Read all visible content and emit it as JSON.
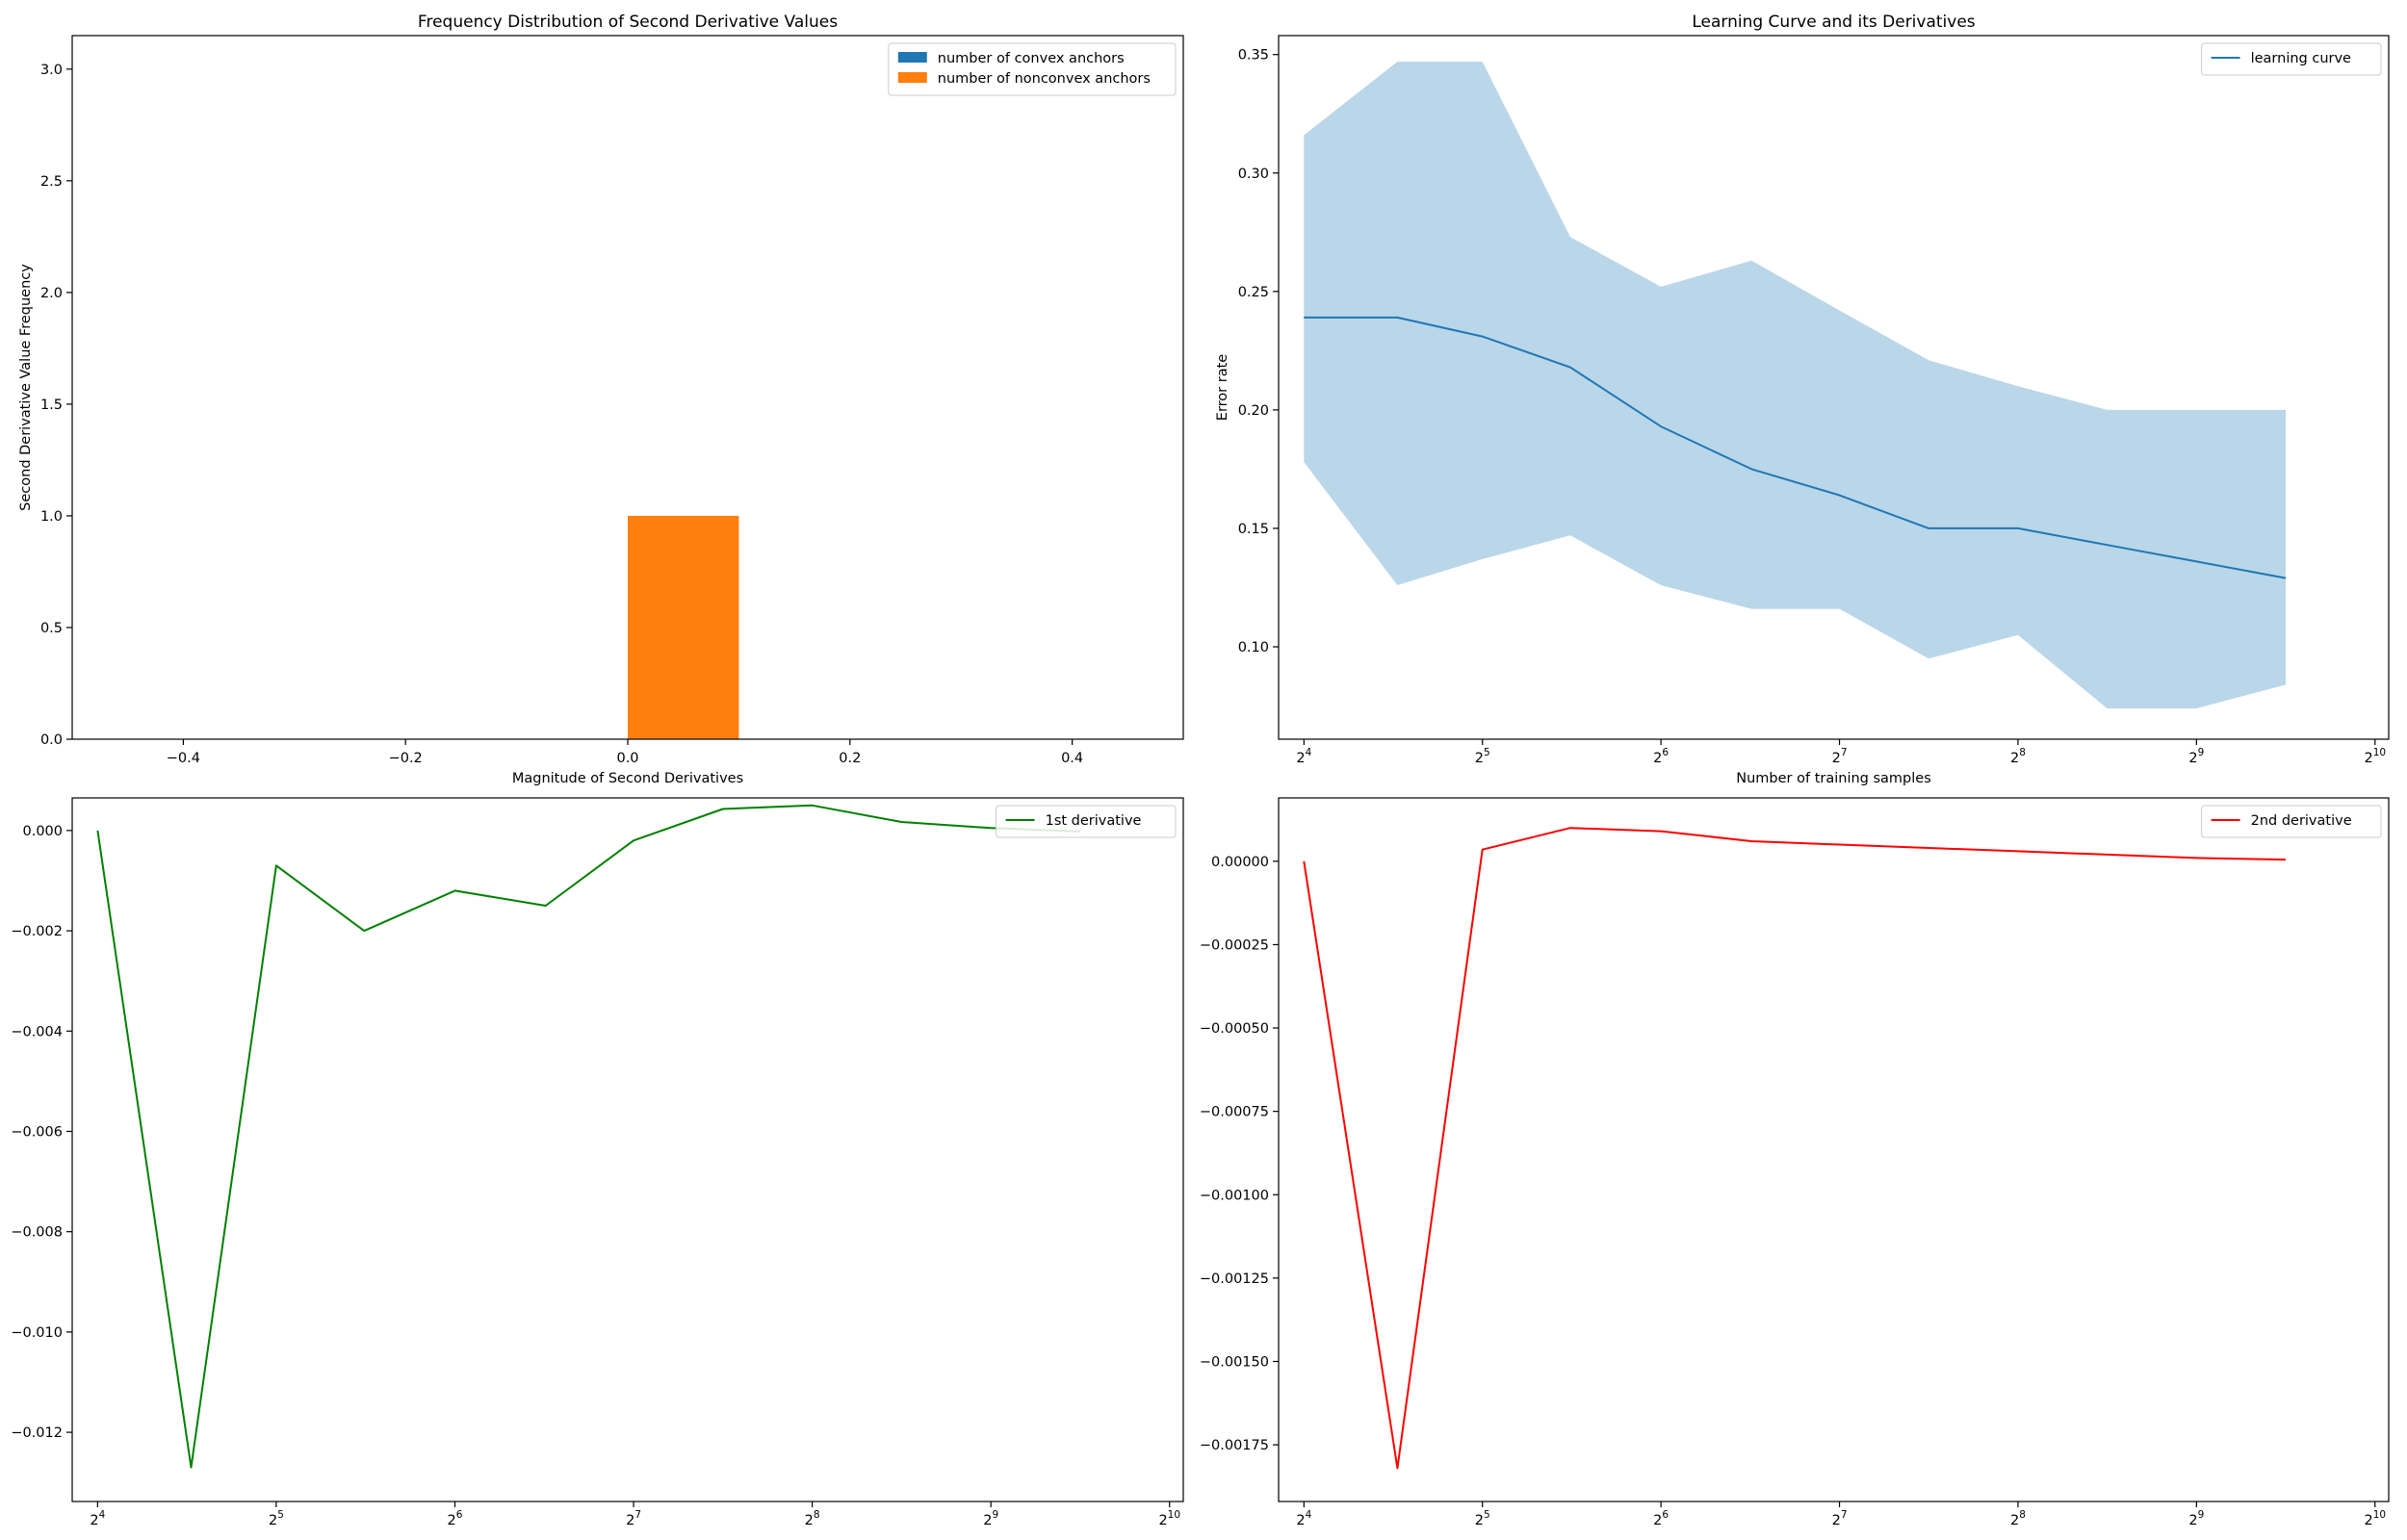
{
  "colors": {
    "convex": "#1f77b4",
    "nonconvex": "#ff7f0e",
    "learning_curve": "#1f77b4",
    "band": "#bad6e9",
    "first_derivative": "#008000",
    "second_derivative": "#ff0000",
    "axes": "#000000"
  },
  "chart_data": [
    {
      "id": "histogram",
      "type": "bar",
      "title": "Frequency Distribution of Second Derivative Values",
      "xlabel": "Magnitude of Second Derivatives",
      "ylabel": "Second Derivative Value Frequency",
      "xlim": [
        -0.5,
        0.5
      ],
      "ylim": [
        0,
        3.15
      ],
      "x_scale": "linear",
      "x_ticks": [
        -0.4,
        -0.2,
        0.0,
        0.2,
        0.4
      ],
      "x_tick_labels": [
        "−0.4",
        "−0.2",
        "0.0",
        "0.2",
        "0.4"
      ],
      "y_ticks": [
        0.0,
        0.5,
        1.0,
        1.5,
        2.0,
        2.5,
        3.0
      ],
      "y_tick_labels": [
        "0.0",
        "0.5",
        "1.0",
        "1.5",
        "2.0",
        "2.5",
        "3.0"
      ],
      "legend_position": "top-right",
      "series": [
        {
          "name": "number of convex anchors",
          "color_key": "convex",
          "bars": []
        },
        {
          "name": "number of nonconvex anchors",
          "color_key": "nonconvex",
          "bars": [
            {
              "x0": 0.0,
              "x1": 0.1,
              "value": 1
            }
          ]
        }
      ]
    },
    {
      "id": "learning_curve",
      "type": "line",
      "title": "Learning Curve and its Derivatives",
      "xlabel": "Number of training samples",
      "ylabel": "Error rate",
      "x_scale": "log2",
      "xlim": [
        14.5,
        1080
      ],
      "ylim": [
        0.061,
        0.358
      ],
      "x_ticks": [
        16,
        32,
        64,
        128,
        256,
        512,
        1024
      ],
      "x_tick_exponents": [
        "4",
        "5",
        "6",
        "7",
        "8",
        "9",
        "10"
      ],
      "y_ticks": [
        0.1,
        0.15,
        0.2,
        0.25,
        0.3,
        0.35
      ],
      "y_tick_labels": [
        "0.10",
        "0.15",
        "0.20",
        "0.25",
        "0.30",
        "0.35"
      ],
      "legend_position": "top-right",
      "x": [
        16,
        23,
        32,
        45,
        64,
        91,
        128,
        181,
        256,
        362,
        512,
        724
      ],
      "series": [
        {
          "name": "learning curve",
          "color_key": "learning_curve",
          "values": [
            0.239,
            0.239,
            0.231,
            0.218,
            0.193,
            0.175,
            0.164,
            0.15,
            0.15,
            0.143,
            0.136,
            0.129
          ]
        }
      ],
      "band": {
        "color_key": "band",
        "upper": [
          0.316,
          0.347,
          0.347,
          0.273,
          0.252,
          0.263,
          0.242,
          0.221,
          0.21,
          0.2,
          0.2,
          0.2
        ],
        "lower": [
          0.178,
          0.126,
          0.137,
          0.147,
          0.126,
          0.116,
          0.116,
          0.095,
          0.105,
          0.074,
          0.074,
          0.084
        ]
      }
    },
    {
      "id": "first_derivative",
      "type": "line",
      "title": "",
      "xlabel": "",
      "ylabel": "",
      "x_scale": "log2",
      "xlim": [
        14.5,
        1080
      ],
      "ylim": [
        -0.01338,
        0.00065
      ],
      "x_ticks": [
        16,
        32,
        64,
        128,
        256,
        512,
        1024
      ],
      "x_tick_exponents": [
        "4",
        "5",
        "6",
        "7",
        "8",
        "9",
        "10"
      ],
      "y_ticks": [
        -0.012,
        -0.01,
        -0.008,
        -0.006,
        -0.004,
        -0.002,
        0.0
      ],
      "y_tick_labels": [
        "−0.012",
        "−0.010",
        "−0.008",
        "−0.006",
        "−0.004",
        "−0.002",
        "0.000"
      ],
      "legend_position": "top-right",
      "x": [
        16,
        23,
        32,
        45,
        64,
        91,
        128,
        181,
        256,
        362,
        512,
        724
      ],
      "series": [
        {
          "name": "1st derivative",
          "color_key": "first_derivative",
          "values": [
            0.0,
            -0.0127,
            -0.0007,
            -0.002,
            -0.0012,
            -0.0015,
            -0.0002,
            0.00043,
            0.0005,
            0.00017,
            5e-05,
            -2e-05
          ]
        }
      ]
    },
    {
      "id": "second_derivative",
      "type": "line",
      "title": "",
      "xlabel": "",
      "ylabel": "",
      "x_scale": "log2",
      "xlim": [
        14.5,
        1080
      ],
      "ylim": [
        -0.00192,
        0.00019
      ],
      "x_ticks": [
        16,
        32,
        64,
        128,
        256,
        512,
        1024
      ],
      "x_tick_exponents": [
        "4",
        "5",
        "6",
        "7",
        "8",
        "9",
        "10"
      ],
      "y_ticks": [
        -0.00175,
        -0.0015,
        -0.00125,
        -0.001,
        -0.00075,
        -0.0005,
        -0.00025,
        0.0
      ],
      "y_tick_labels": [
        "−0.00175",
        "−0.00150",
        "−0.00125",
        "−0.00100",
        "−0.00075",
        "−0.00050",
        "−0.00025",
        "0.00000"
      ],
      "legend_position": "top-right",
      "x": [
        16,
        23,
        32,
        45,
        64,
        91,
        128,
        181,
        256,
        362,
        512,
        724
      ],
      "series": [
        {
          "name": "2nd derivative",
          "color_key": "second_derivative",
          "values": [
            0.0,
            -0.00182,
            3.5e-05,
            0.0001,
            9e-05,
            6e-05,
            5e-05,
            4e-05,
            3e-05,
            2e-05,
            1e-05,
            5e-06
          ]
        }
      ]
    }
  ]
}
